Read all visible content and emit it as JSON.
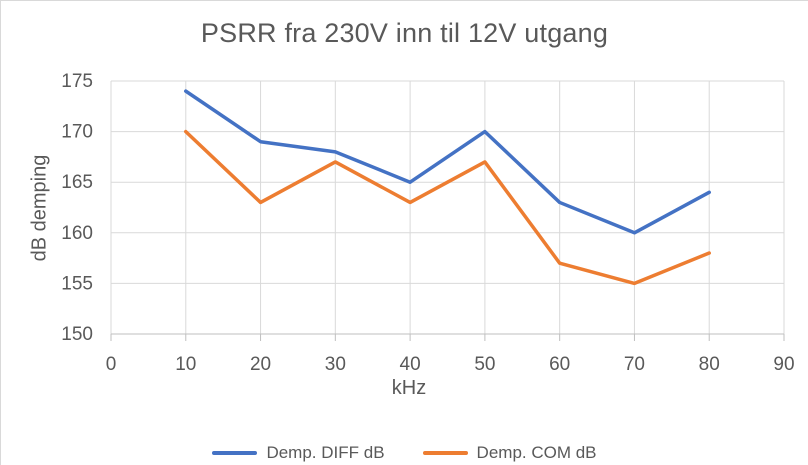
{
  "chart_data": {
    "type": "line",
    "title": "PSRR fra 230V inn til 12V utgang",
    "xlabel": "kHz",
    "ylabel": "dB demping",
    "x": [
      10,
      20,
      30,
      40,
      50,
      60,
      70,
      80
    ],
    "series": [
      {
        "name": "Demp. DIFF dB",
        "color": "#4472C4",
        "values": [
          174,
          169,
          168,
          165,
          170,
          163,
          160,
          164
        ]
      },
      {
        "name": "Demp. COM dB",
        "color": "#ED7D31",
        "values": [
          170,
          163,
          167,
          163,
          167,
          157,
          155,
          158
        ]
      }
    ],
    "xlim": [
      0,
      90
    ],
    "ylim": [
      150,
      175
    ],
    "x_ticks": [
      0,
      10,
      20,
      30,
      40,
      50,
      60,
      70,
      80,
      90
    ],
    "y_ticks": [
      150,
      155,
      160,
      165,
      170,
      175
    ],
    "grid": true,
    "legend_position": "bottom",
    "gridline_color": "#d9d9d9",
    "axis_line_color": "#bfbfbf",
    "text_color": "#595959"
  }
}
